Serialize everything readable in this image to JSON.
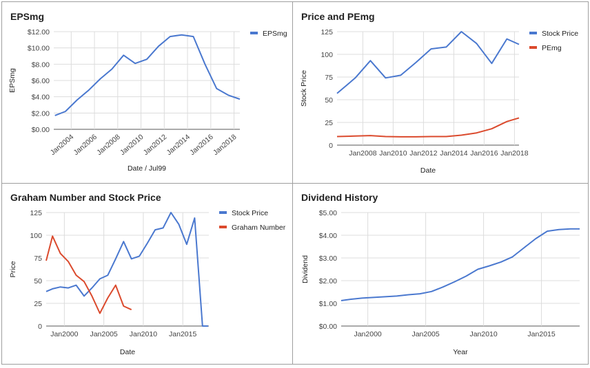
{
  "colors": {
    "blue": "#4a78cf",
    "red": "#db4a2d",
    "grid": "#dcdcdc",
    "axis": "#555555"
  },
  "chart_data": [
    {
      "type": "line",
      "title": "EPSmg",
      "xlabel": "Date / Jul99",
      "ylabel": "EPSmg",
      "xlim": [
        2002.5,
        2018.5
      ],
      "ylim": [
        0,
        12
      ],
      "yticks": [
        0,
        2,
        4,
        6,
        8,
        10,
        12
      ],
      "ytick_labels": [
        "$0.00",
        "$2.00",
        "$4.00",
        "$6.00",
        "$8.00",
        "$10.00",
        "$12.00"
      ],
      "xticks": [
        2004,
        2006,
        2008,
        2010,
        2012,
        2014,
        2016,
        2018
      ],
      "xtick_labels": [
        "Jan2004",
        "Jan2006",
        "Jan2008",
        "Jan2010",
        "Jan2012",
        "Jan2014",
        "Jan2016",
        "Jan2018"
      ],
      "series": [
        {
          "name": "EPSmg",
          "color": "#4a78cf",
          "x": [
            2002.6,
            2003.5,
            2004.5,
            2005.5,
            2006.5,
            2007.5,
            2008.5,
            2009.5,
            2010.5,
            2011.5,
            2012.5,
            2013.5,
            2014.5,
            2015.5,
            2016.5,
            2017.5,
            2018.3,
            2018.5
          ],
          "values": [
            1.7,
            2.2,
            3.6,
            4.8,
            6.2,
            7.4,
            9.1,
            8.1,
            8.6,
            10.2,
            11.4,
            11.6,
            11.4,
            8.0,
            5.0,
            4.2,
            3.8,
            3.7
          ]
        }
      ],
      "legend_position": "top-right"
    },
    {
      "type": "line",
      "title": "Price and PEmg",
      "xlabel": "Date",
      "ylabel": "Stock Price",
      "xlim": [
        2006.3,
        2018.3
      ],
      "ylim": [
        0,
        125
      ],
      "yticks": [
        0,
        25,
        50,
        75,
        100,
        125
      ],
      "ytick_labels": [
        "0",
        "25",
        "50",
        "75",
        "100",
        "125"
      ],
      "xticks": [
        2008,
        2010,
        2012,
        2014,
        2016,
        2018
      ],
      "xtick_labels": [
        "Jan2008",
        "Jan2010",
        "Jan2012",
        "Jan2014",
        "Jan2016",
        "Jan2018"
      ],
      "series": [
        {
          "name": "Stock Price",
          "color": "#4a78cf",
          "x": [
            2006.3,
            2007.5,
            2008.5,
            2009.5,
            2010.5,
            2011.5,
            2012.5,
            2013.5,
            2014.5,
            2015.5,
            2016.5,
            2017.5,
            2018.3
          ],
          "values": [
            57,
            74,
            93,
            74,
            77,
            91,
            106,
            108,
            125,
            112,
            90,
            117,
            111
          ]
        },
        {
          "name": "PEmg",
          "color": "#db4a2d",
          "x": [
            2006.3,
            2007.5,
            2008.5,
            2009.5,
            2010.5,
            2011.5,
            2012.5,
            2013.5,
            2014.5,
            2015.5,
            2016.5,
            2017.5,
            2018.3
          ],
          "values": [
            9.5,
            10,
            10.5,
            9.5,
            9.2,
            9.2,
            9.5,
            9.5,
            11,
            13.5,
            18,
            26,
            30
          ]
        }
      ],
      "legend_position": "top-right"
    },
    {
      "type": "line",
      "title": "Graham Number and Stock Price",
      "xlabel": "Date",
      "ylabel": "Price",
      "xlim": [
        1997.7,
        2018.3
      ],
      "ylim": [
        0,
        125
      ],
      "yticks": [
        0,
        25,
        50,
        75,
        100,
        125
      ],
      "ytick_labels": [
        "0",
        "25",
        "50",
        "75",
        "100",
        "125"
      ],
      "xticks": [
        2000,
        2005,
        2010,
        2015
      ],
      "xtick_labels": [
        "Jan2000",
        "Jan2005",
        "Jan2010",
        "Jan2015"
      ],
      "series": [
        {
          "name": "Stock Price",
          "color": "#4a78cf",
          "x": [
            1997.7,
            1998.5,
            1999.5,
            2000.5,
            2001.5,
            2002.5,
            2003.5,
            2004.5,
            2005.5,
            2006.5,
            2007.5,
            2008.5,
            2009.5,
            2010.5,
            2011.5,
            2012.5,
            2013.5,
            2014.5,
            2015.5,
            2016.5,
            2017.5,
            2018.2
          ],
          "values": [
            38,
            41,
            43,
            42,
            45,
            33,
            42,
            52,
            56,
            74,
            93,
            74,
            77,
            91,
            106,
            108,
            125,
            112,
            90,
            119,
            0,
            0
          ]
        },
        {
          "name": "Graham Number",
          "color": "#db4a2d",
          "x": [
            1997.7,
            1998.5,
            1999.5,
            2000.5,
            2001.5,
            2002.5,
            2003.5,
            2004.5,
            2005.5,
            2006.5,
            2007.5,
            2008.5
          ],
          "values": [
            72,
            99,
            80,
            71,
            56,
            49,
            33,
            14,
            31,
            45,
            22,
            18
          ]
        }
      ],
      "legend_position": "top-right"
    },
    {
      "type": "line",
      "title": "Dividend History",
      "xlabel": "Year",
      "ylabel": "Dividend",
      "xlim": [
        1997.7,
        2018.3
      ],
      "ylim": [
        0,
        5
      ],
      "yticks": [
        0,
        1,
        2,
        3,
        4,
        5
      ],
      "ytick_labels": [
        "$0.00",
        "$1.00",
        "$2.00",
        "$3.00",
        "$4.00",
        "$5.00"
      ],
      "xticks": [
        2000,
        2005,
        2010,
        2015
      ],
      "xtick_labels": [
        "Jan2000",
        "Jan2005",
        "Jan2010",
        "Jan2015"
      ],
      "series": [
        {
          "name": "Dividend",
          "color": "#4a78cf",
          "x": [
            1997.7,
            1998.5,
            1999.5,
            2000.5,
            2001.5,
            2002.5,
            2003.5,
            2004.5,
            2005.5,
            2006.5,
            2007.5,
            2008.5,
            2009.5,
            2010.5,
            2011.5,
            2012.5,
            2013.5,
            2014.5,
            2015.5,
            2016.5,
            2017.5,
            2018.3
          ],
          "values": [
            1.12,
            1.18,
            1.23,
            1.26,
            1.29,
            1.32,
            1.38,
            1.42,
            1.52,
            1.72,
            1.95,
            2.2,
            2.5,
            2.65,
            2.82,
            3.05,
            3.45,
            3.85,
            4.18,
            4.25,
            4.28,
            4.28
          ]
        }
      ],
      "legend_position": "none"
    }
  ]
}
